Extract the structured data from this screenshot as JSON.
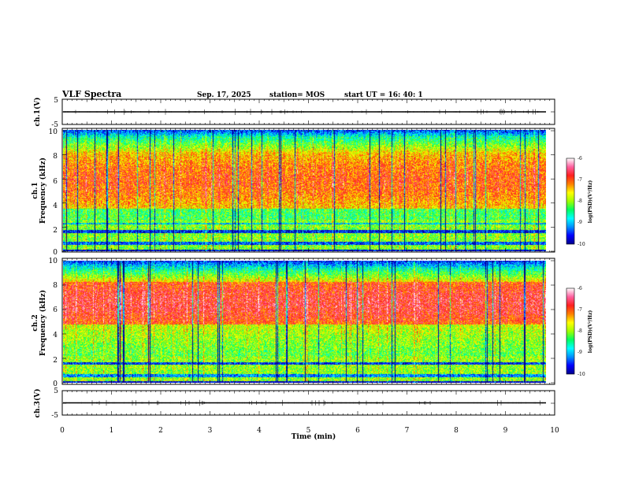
{
  "header": {
    "title": "VLF Spectra",
    "date": "Sep. 17, 2025",
    "station": "station= MOS",
    "start": "start  UT =    16: 40: 1"
  },
  "colors": {
    "scale": [
      "#00008b",
      "#0000ff",
      "#0090ff",
      "#00ffff",
      "#00ff60",
      "#a0ff00",
      "#ffff00",
      "#ff8000",
      "#ff2020",
      "#ff60a0",
      "#ffffff"
    ]
  },
  "chart_data": [
    {
      "type": "line",
      "name": "ch.1 waveform",
      "ylabel": "ch.1(V)",
      "ylim": [
        -5,
        5
      ],
      "yticks": [
        "5",
        "-5"
      ],
      "baseline": 0
    },
    {
      "type": "heatmap",
      "name": "ch.1 spectrogram",
      "ylabel_top": "ch.1",
      "ylabel": "Frequency  (kHz)",
      "ylim": [
        0,
        10
      ],
      "yticks": [
        "0",
        "2",
        "4",
        "6",
        "8",
        "10"
      ],
      "xlim": [
        0,
        9.8
      ],
      "colorbar": {
        "label": "log(PSD)(V²/Hz)",
        "range": [
          -10,
          -6
        ],
        "ticks": [
          "-6",
          "-7",
          "-8",
          "-9",
          "-10"
        ]
      }
    },
    {
      "type": "heatmap",
      "name": "ch.2 spectrogram",
      "ylabel_top": "ch.2",
      "ylabel": "Frequency  (kHz)",
      "ylim": [
        0,
        10
      ],
      "yticks": [
        "0",
        "2",
        "4",
        "6",
        "8",
        "10"
      ],
      "xlim": [
        0,
        9.8
      ],
      "colorbar": {
        "label": "log(PSD)(V²/Hz)",
        "range": [
          -10,
          -6
        ],
        "ticks": [
          "-6",
          "-7",
          "-8",
          "-9",
          "-10"
        ]
      }
    },
    {
      "type": "line",
      "name": "ch.3 waveform",
      "ylabel": "ch.3(V)",
      "ylim": [
        -5,
        5
      ],
      "yticks": [
        "5",
        "-5"
      ],
      "baseline": 0
    }
  ],
  "xaxis": {
    "label": "Time  (min)",
    "range": [
      0,
      10
    ],
    "ticks": [
      "0",
      "1",
      "2",
      "3",
      "4",
      "5",
      "6",
      "7",
      "8",
      "9",
      "10"
    ]
  }
}
